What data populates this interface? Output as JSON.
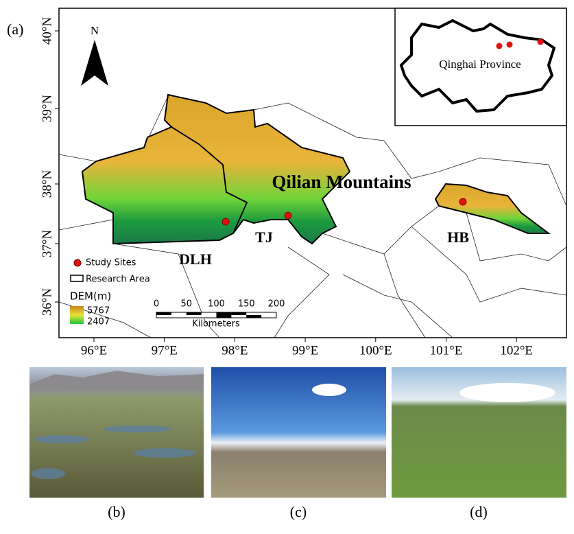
{
  "map": {
    "panel_label": "(a)",
    "north": "N",
    "lat_labels": [
      "40°N",
      "39°N",
      "38°N",
      "37°N",
      "36°N"
    ],
    "lon_labels": [
      "96°E",
      "97°E",
      "98°E",
      "99°E",
      "100°E",
      "101°E",
      "102°E"
    ],
    "title": "Qilian Mountains",
    "regions": [
      "DLH",
      "TJ",
      "HB"
    ]
  },
  "inset": {
    "label": "Qinghai Province"
  },
  "legend": {
    "sites": "Study Sites",
    "area": "Research Area",
    "dem": "DEM(m)",
    "dem_max": "5767",
    "dem_min": "2407"
  },
  "scale_bar": {
    "ticks": [
      0,
      50,
      100,
      150,
      200
    ],
    "unit": "Kilometers"
  },
  "photos": {
    "captions": [
      "(b)",
      "(c)",
      "(d)"
    ]
  }
}
